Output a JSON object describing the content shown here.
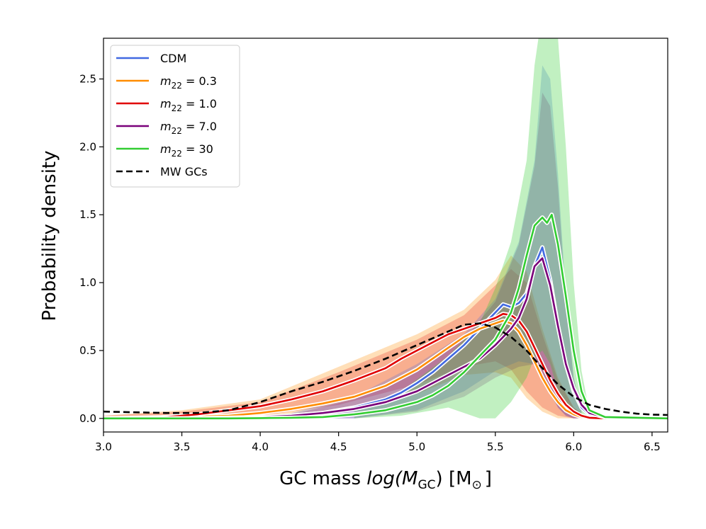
{
  "chart_data": {
    "type": "line",
    "xlabel_prefix": "GC mass ",
    "xlabel_log": "log(",
    "xlabel_M": "M",
    "xlabel_sub": "GC",
    "xlabel_suffix": ") [M",
    "xlabel_sun": "⊙",
    "xlabel_close": "]",
    "ylabel": "Probability density",
    "xlim": [
      3.0,
      6.6
    ],
    "ylim": [
      -0.1,
      2.8
    ],
    "xticks": [
      3.0,
      3.5,
      4.0,
      4.5,
      5.0,
      5.5,
      6.0,
      6.5
    ],
    "xtick_labels": [
      "3.0",
      "3.5",
      "4.0",
      "4.5",
      "5.0",
      "5.5",
      "6.0",
      "6.5"
    ],
    "yticks": [
      0.0,
      0.5,
      1.0,
      1.5,
      2.0,
      2.5
    ],
    "ytick_labels": [
      "0.0",
      "0.5",
      "1.0",
      "1.5",
      "2.0",
      "2.5"
    ],
    "legend_position": "top-left",
    "colors": {
      "cdm": "#4169e1",
      "m03": "#ff8c00",
      "m1": "#e00000",
      "m7": "#7a007a",
      "m30": "#32cd32",
      "mw": "#000000"
    },
    "legend": [
      {
        "key": "cdm",
        "label_main": "CDM",
        "label_sub": "",
        "label_eq": ""
      },
      {
        "key": "m03",
        "label_main": "m",
        "label_sub": "22",
        "label_eq": " = 0.3"
      },
      {
        "key": "m1",
        "label_main": "m",
        "label_sub": "22",
        "label_eq": " = 1.0"
      },
      {
        "key": "m7",
        "label_main": "m",
        "label_sub": "22",
        "label_eq": " = 7.0"
      },
      {
        "key": "m30",
        "label_main": "m",
        "label_sub": "22",
        "label_eq": " = 30"
      },
      {
        "key": "mw",
        "label_main": "MW GCs",
        "label_sub": "",
        "label_eq": "",
        "dashed": true
      }
    ],
    "series": [
      {
        "key": "cdm",
        "name": "CDM",
        "x": [
          3.0,
          3.5,
          3.8,
          4.0,
          4.2,
          4.4,
          4.6,
          4.8,
          4.9,
          5.0,
          5.1,
          5.2,
          5.3,
          5.4,
          5.5,
          5.55,
          5.6,
          5.65,
          5.7,
          5.75,
          5.8,
          5.85,
          5.9,
          5.95,
          6.0,
          6.05,
          6.1,
          6.2,
          6.3,
          6.6
        ],
        "y": [
          0.0,
          0.0,
          0.003,
          0.008,
          0.02,
          0.04,
          0.08,
          0.14,
          0.19,
          0.26,
          0.34,
          0.44,
          0.54,
          0.66,
          0.78,
          0.84,
          0.82,
          0.85,
          0.92,
          1.12,
          1.26,
          1.02,
          0.68,
          0.4,
          0.2,
          0.08,
          0.03,
          0.005,
          0.0,
          0.0
        ]
      },
      {
        "key": "m03",
        "name": "m22 = 0.3",
        "x": [
          3.0,
          3.5,
          3.8,
          4.0,
          4.2,
          4.4,
          4.6,
          4.8,
          5.0,
          5.1,
          5.2,
          5.3,
          5.4,
          5.5,
          5.55,
          5.6,
          5.65,
          5.7,
          5.75,
          5.8,
          5.85,
          5.9,
          5.95,
          6.0,
          6.05,
          6.1,
          6.2,
          6.6
        ],
        "y": [
          0.0,
          0.01,
          0.02,
          0.04,
          0.07,
          0.11,
          0.16,
          0.24,
          0.36,
          0.44,
          0.52,
          0.6,
          0.66,
          0.7,
          0.72,
          0.7,
          0.64,
          0.54,
          0.42,
          0.3,
          0.2,
          0.12,
          0.06,
          0.03,
          0.01,
          0.0,
          0.0,
          0.0
        ]
      },
      {
        "key": "m1",
        "name": "m22 = 1.0",
        "x": [
          3.0,
          3.3,
          3.6,
          3.8,
          4.0,
          4.2,
          4.4,
          4.6,
          4.8,
          4.9,
          5.0,
          5.1,
          5.2,
          5.3,
          5.4,
          5.5,
          5.55,
          5.6,
          5.65,
          5.7,
          5.75,
          5.8,
          5.85,
          5.9,
          5.95,
          6.0,
          6.05,
          6.1,
          6.2,
          6.6
        ],
        "y": [
          0.0,
          0.0,
          0.03,
          0.06,
          0.09,
          0.14,
          0.2,
          0.28,
          0.37,
          0.44,
          0.5,
          0.56,
          0.62,
          0.66,
          0.7,
          0.74,
          0.77,
          0.76,
          0.72,
          0.64,
          0.52,
          0.4,
          0.28,
          0.18,
          0.1,
          0.05,
          0.02,
          0.005,
          0.0,
          0.0
        ]
      },
      {
        "key": "m7",
        "name": "m22 = 7.0",
        "x": [
          3.0,
          3.5,
          3.8,
          4.0,
          4.2,
          4.4,
          4.6,
          4.8,
          5.0,
          5.1,
          5.2,
          5.3,
          5.4,
          5.5,
          5.6,
          5.65,
          5.7,
          5.75,
          5.8,
          5.85,
          5.9,
          5.95,
          6.0,
          6.05,
          6.1,
          6.2,
          6.3,
          6.6
        ],
        "y": [
          0.0,
          0.0,
          0.005,
          0.01,
          0.02,
          0.04,
          0.07,
          0.12,
          0.2,
          0.26,
          0.32,
          0.38,
          0.44,
          0.54,
          0.66,
          0.74,
          0.88,
          1.12,
          1.18,
          0.98,
          0.68,
          0.4,
          0.22,
          0.1,
          0.04,
          0.008,
          0.0,
          0.0
        ]
      },
      {
        "key": "m30",
        "name": "m22 = 30",
        "x": [
          3.0,
          3.8,
          4.0,
          4.2,
          4.4,
          4.6,
          4.8,
          5.0,
          5.1,
          5.2,
          5.3,
          5.4,
          5.5,
          5.6,
          5.65,
          5.7,
          5.75,
          5.8,
          5.83,
          5.86,
          5.9,
          5.95,
          6.0,
          6.05,
          6.1,
          6.2,
          6.6
        ],
        "y": [
          0.0,
          0.0,
          0.002,
          0.005,
          0.01,
          0.03,
          0.06,
          0.12,
          0.17,
          0.24,
          0.34,
          0.46,
          0.58,
          0.78,
          0.96,
          1.2,
          1.42,
          1.48,
          1.44,
          1.5,
          1.28,
          0.9,
          0.5,
          0.2,
          0.06,
          0.01,
          0.0
        ]
      },
      {
        "key": "mw",
        "name": "MW GCs",
        "dashed": true,
        "x": [
          3.0,
          3.2,
          3.4,
          3.6,
          3.8,
          4.0,
          4.2,
          4.4,
          4.6,
          4.8,
          5.0,
          5.2,
          5.3,
          5.4,
          5.5,
          5.6,
          5.7,
          5.8,
          5.9,
          6.0,
          6.1,
          6.2,
          6.3,
          6.4,
          6.5,
          6.6
        ],
        "y": [
          0.05,
          0.045,
          0.04,
          0.04,
          0.06,
          0.12,
          0.2,
          0.27,
          0.35,
          0.44,
          0.54,
          0.64,
          0.69,
          0.7,
          0.67,
          0.6,
          0.5,
          0.37,
          0.25,
          0.16,
          0.1,
          0.07,
          0.05,
          0.035,
          0.028,
          0.025
        ]
      }
    ],
    "bands": [
      {
        "key": "m03",
        "color": "#ff8c00",
        "opacity": 0.28,
        "x": [
          3.0,
          3.5,
          4.0,
          4.5,
          5.0,
          5.3,
          5.5,
          5.6,
          5.7,
          5.8,
          5.9,
          6.0,
          6.1
        ],
        "lo": [
          0.0,
          0.0,
          0.0,
          0.05,
          0.18,
          0.32,
          0.34,
          0.3,
          0.15,
          0.05,
          0.0,
          0.0,
          0.0
        ],
        "hi": [
          0.02,
          0.06,
          0.14,
          0.38,
          0.62,
          0.8,
          1.02,
          1.2,
          1.08,
          0.66,
          0.3,
          0.08,
          0.0
        ]
      },
      {
        "key": "m1",
        "color": "#e00000",
        "opacity": 0.22,
        "x": [
          3.0,
          3.5,
          4.0,
          4.5,
          5.0,
          5.3,
          5.5,
          5.6,
          5.7,
          5.8,
          5.9,
          6.0,
          6.1
        ],
        "lo": [
          0.0,
          0.0,
          0.02,
          0.1,
          0.25,
          0.38,
          0.42,
          0.36,
          0.2,
          0.08,
          0.02,
          0.0,
          0.0
        ],
        "hi": [
          0.02,
          0.05,
          0.12,
          0.34,
          0.58,
          0.76,
          0.98,
          1.1,
          1.0,
          0.62,
          0.28,
          0.08,
          0.0
        ]
      },
      {
        "key": "cdm",
        "color": "#4169e1",
        "opacity": 0.25,
        "x": [
          4.2,
          4.6,
          5.0,
          5.3,
          5.5,
          5.65,
          5.75,
          5.8,
          5.85,
          5.9,
          5.95,
          6.0,
          6.05
        ],
        "lo": [
          0.0,
          0.0,
          0.06,
          0.2,
          0.35,
          0.42,
          0.4,
          0.3,
          0.18,
          0.08,
          0.02,
          0.0,
          0.0
        ],
        "hi": [
          0.04,
          0.16,
          0.4,
          0.62,
          0.88,
          1.3,
          1.9,
          2.6,
          2.5,
          1.8,
          0.9,
          0.3,
          0.05
        ]
      },
      {
        "key": "m7",
        "color": "#7a007a",
        "opacity": 0.22,
        "x": [
          4.2,
          4.6,
          5.0,
          5.3,
          5.5,
          5.65,
          5.75,
          5.8,
          5.85,
          5.9,
          5.95,
          6.0,
          6.05
        ],
        "lo": [
          0.0,
          0.0,
          0.05,
          0.16,
          0.3,
          0.38,
          0.4,
          0.32,
          0.2,
          0.08,
          0.02,
          0.0,
          0.0
        ],
        "hi": [
          0.03,
          0.14,
          0.36,
          0.58,
          0.86,
          1.28,
          1.86,
          2.4,
          2.3,
          1.7,
          0.85,
          0.3,
          0.05
        ]
      },
      {
        "key": "m30",
        "color": "#32cd32",
        "opacity": 0.3,
        "x": [
          4.6,
          4.9,
          5.2,
          5.4,
          5.5,
          5.6,
          5.7,
          5.75,
          5.8,
          5.85,
          5.9,
          5.95,
          6.0,
          6.05,
          6.1
        ],
        "lo": [
          0.0,
          0.02,
          0.08,
          0.0,
          0.0,
          0.12,
          0.3,
          0.45,
          0.5,
          0.4,
          0.2,
          0.08,
          0.02,
          0.0,
          0.0
        ],
        "hi": [
          0.06,
          0.2,
          0.46,
          0.7,
          0.96,
          1.3,
          1.9,
          2.6,
          3.0,
          3.0,
          2.8,
          2.0,
          1.0,
          0.35,
          0.05
        ]
      }
    ]
  }
}
